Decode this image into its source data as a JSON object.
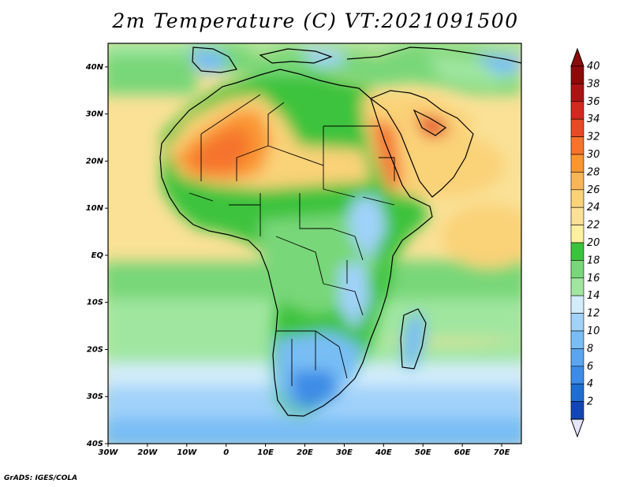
{
  "title": "2m Temperature (C) VT:2021091500",
  "footer": "GrADS: IGES/COLA",
  "map": {
    "lat_labels": [
      "40N",
      "30N",
      "20N",
      "10N",
      "EQ",
      "10S",
      "20S",
      "30S",
      "40S"
    ],
    "lon_labels": [
      "30W",
      "20W",
      "10W",
      "0",
      "10E",
      "20E",
      "30E",
      "40E",
      "50E",
      "60E",
      "70E"
    ],
    "lat_range": [
      -40,
      45
    ],
    "lon_range": [
      -30,
      75
    ]
  },
  "colorbar": {
    "levels": [
      "2",
      "4",
      "6",
      "8",
      "10",
      "12",
      "14",
      "16",
      "18",
      "20",
      "22",
      "24",
      "26",
      "28",
      "30",
      "32",
      "34",
      "36",
      "38",
      "40"
    ],
    "colors": [
      "#0a1e7d",
      "#1246b4",
      "#1e6ed2",
      "#3c8ce6",
      "#5aa5f0",
      "#78bef5",
      "#a0d2fa",
      "#d2ecfa",
      "#a0e6a0",
      "#78d778",
      "#3cc33c",
      "#fff0a0",
      "#fae196",
      "#fad278",
      "#fab45a",
      "#fa9632",
      "#f5732d",
      "#e64b23",
      "#d2281e",
      "#aa1414",
      "#8c0a0a"
    ],
    "min_color": "#e6e6fa"
  }
}
